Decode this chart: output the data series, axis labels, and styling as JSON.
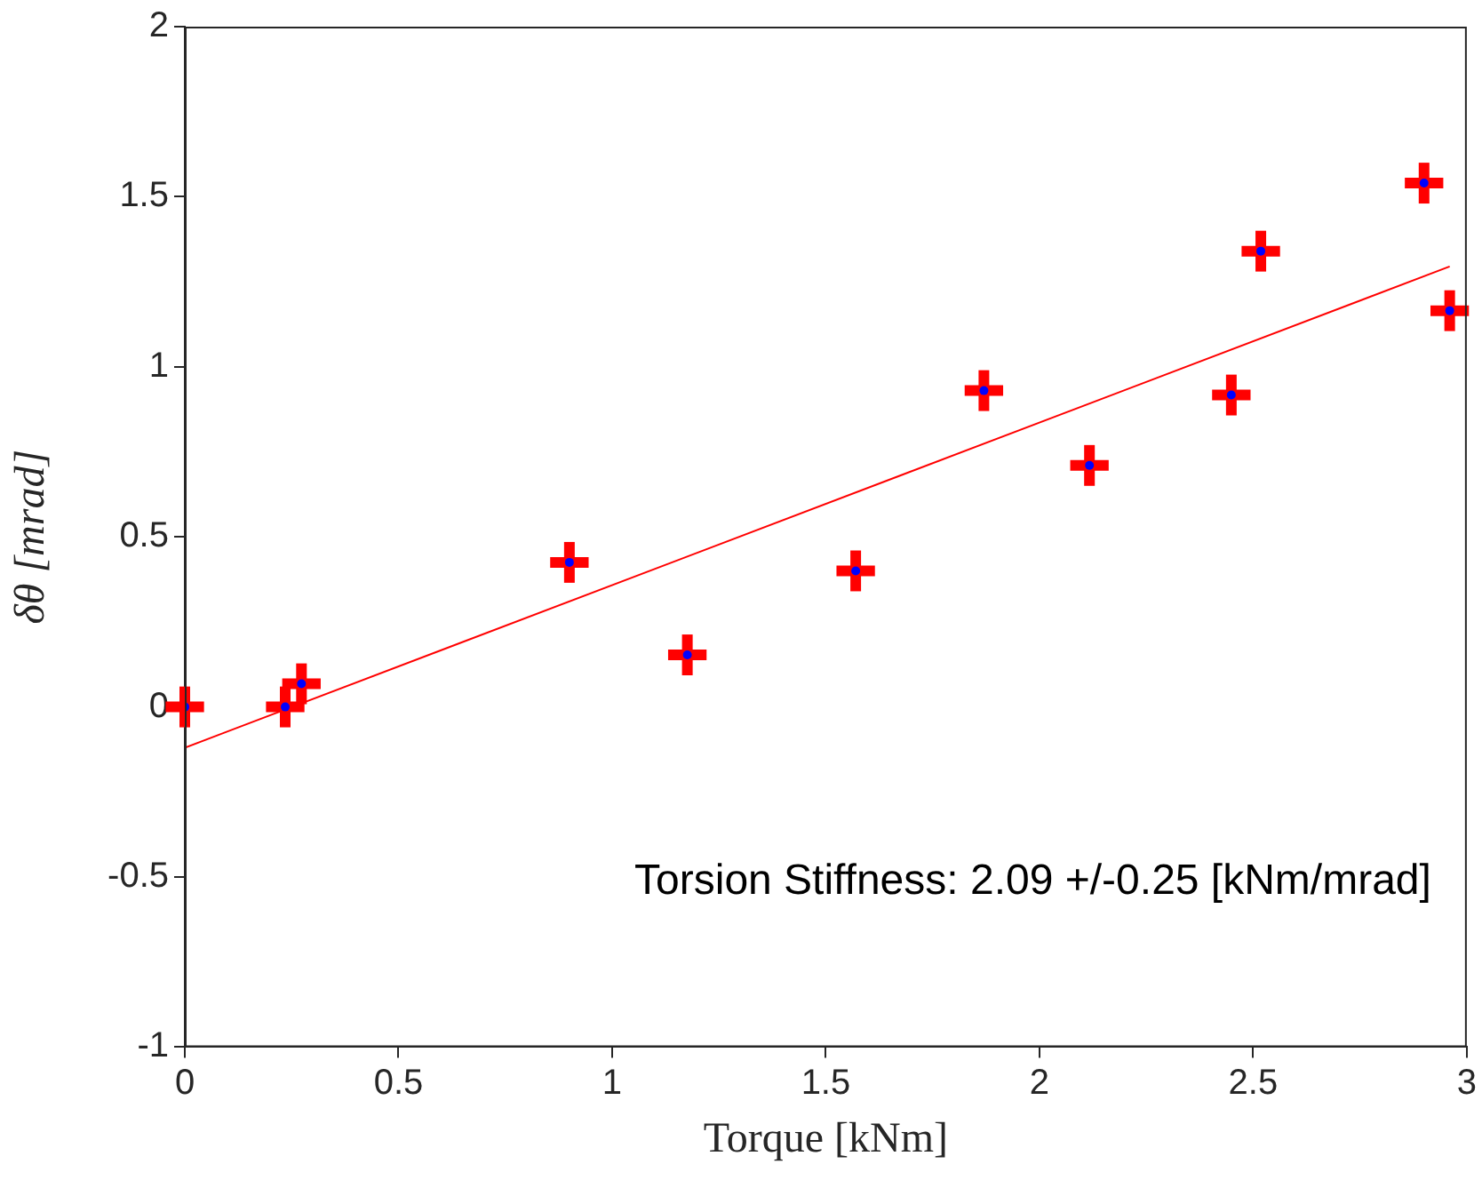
{
  "chart_data": {
    "type": "scatter",
    "xlabel": "Torque [kNm]",
    "ylabel": "δθ [mrad]",
    "xlim": [
      0,
      3
    ],
    "xticks": [
      0,
      0.5,
      1,
      1.5,
      2,
      2.5,
      3
    ],
    "ylim": [
      -1,
      2
    ],
    "yticks": [
      -1,
      -0.5,
      0,
      0.5,
      1,
      1.5,
      2
    ],
    "marker": "circle",
    "legend": false,
    "annotations": [
      "Torsion Stiffness: 2.09 +/-0.25 [kNm/mrad]"
    ],
    "series": [
      {
        "color": "#0000ff",
        "x": [
          0,
          0.235,
          0.273,
          0.9,
          1.176,
          1.57,
          1.87,
          2.117,
          2.449,
          2.518,
          2.9,
          2.96
        ],
        "values": [
          0,
          0,
          0.068,
          0.425,
          0.153,
          0.4,
          0.93,
          0.71,
          0.917,
          1.34,
          1.54,
          1.165
        ],
        "errors": [
          0.06,
          0.06,
          0.06,
          0.06,
          0.06,
          0.06,
          0.06,
          0.06,
          0.06,
          0.06,
          0.06,
          0.06
        ],
        "xerrors": [
          0.045,
          0.045,
          0.045,
          0.045,
          0.045,
          0.045,
          0.045,
          0.045,
          0.045,
          0.045,
          0.045,
          0.045
        ]
      },
      {
        "type": "line",
        "color": "#ff0000",
        "x": [
          0,
          2.96
        ],
        "values": [
          -0.12,
          1.295
        ],
        "marker": "none"
      }
    ]
  }
}
